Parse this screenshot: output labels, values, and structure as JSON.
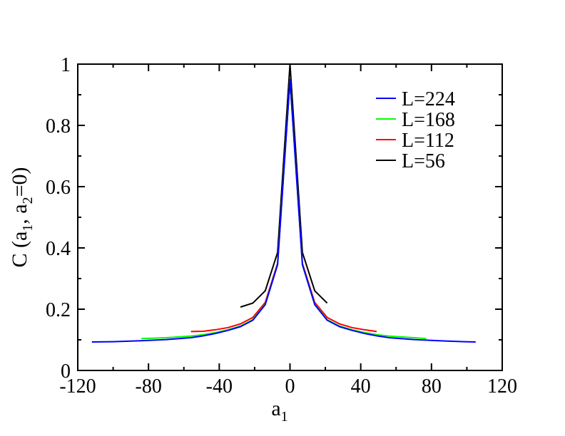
{
  "chart_data": {
    "type": "line",
    "xlabel": {
      "main": "a",
      "sub": "1"
    },
    "ylabel": {
      "p1": "C (a",
      "s1": "1",
      "p2": ", a",
      "s2": "2",
      "p3": "=0)"
    },
    "xlim": [
      -120,
      120
    ],
    "ylim": [
      0,
      1
    ],
    "xticks": [
      -120,
      -80,
      -40,
      0,
      40,
      80,
      120
    ],
    "yticks": [
      0,
      0.2,
      0.4,
      0.6,
      0.8,
      1
    ],
    "xtick_labels": [
      "-120",
      "-80",
      "-40",
      "0",
      "40",
      "80",
      "120"
    ],
    "ytick_labels": [
      "0",
      "0.2",
      "0.4",
      "0.6",
      "0.8",
      "1"
    ],
    "grid": false,
    "legend_position": "top-right",
    "series": [
      {
        "name": "L=224",
        "color": "#0000ff",
        "x": [
          -112,
          -100,
          -84,
          -70,
          -56,
          -49,
          -42,
          -35,
          -28,
          -21,
          -14,
          -7,
          0,
          7,
          14,
          21,
          28,
          35,
          42,
          49,
          56,
          70,
          84,
          98,
          105
        ],
        "y": [
          0.093,
          0.094,
          0.097,
          0.101,
          0.107,
          0.113,
          0.121,
          0.131,
          0.143,
          0.164,
          0.215,
          0.345,
          0.95,
          0.345,
          0.215,
          0.164,
          0.143,
          0.131,
          0.121,
          0.113,
          0.107,
          0.101,
          0.097,
          0.094,
          0.093
        ]
      },
      {
        "name": "L=168",
        "color": "#00ff00",
        "x": [
          -84,
          -70,
          -56,
          -49,
          -42,
          -35,
          -28,
          -21,
          -14,
          -7,
          0,
          7,
          14,
          21,
          28,
          35,
          42,
          49,
          56,
          70,
          77
        ],
        "y": [
          0.104,
          0.107,
          0.112,
          0.117,
          0.124,
          0.133,
          0.145,
          0.166,
          0.216,
          0.346,
          0.95,
          0.346,
          0.216,
          0.166,
          0.145,
          0.133,
          0.124,
          0.117,
          0.112,
          0.107,
          0.104
        ]
      },
      {
        "name": "L=112",
        "color": "#ff0000",
        "x": [
          -56,
          -49,
          -42,
          -35,
          -28,
          -21,
          -14,
          -7,
          0,
          7,
          14,
          21,
          28,
          35,
          42,
          49
        ],
        "y": [
          0.127,
          0.128,
          0.133,
          0.14,
          0.152,
          0.173,
          0.222,
          0.35,
          0.95,
          0.35,
          0.222,
          0.173,
          0.152,
          0.14,
          0.133,
          0.127
        ]
      },
      {
        "name": "L=56",
        "color": "#000000",
        "x": [
          -28,
          -21,
          -14,
          -7,
          0,
          7,
          14,
          21
        ],
        "y": [
          0.207,
          0.22,
          0.26,
          0.385,
          1.0,
          0.385,
          0.26,
          0.22
        ]
      }
    ]
  }
}
